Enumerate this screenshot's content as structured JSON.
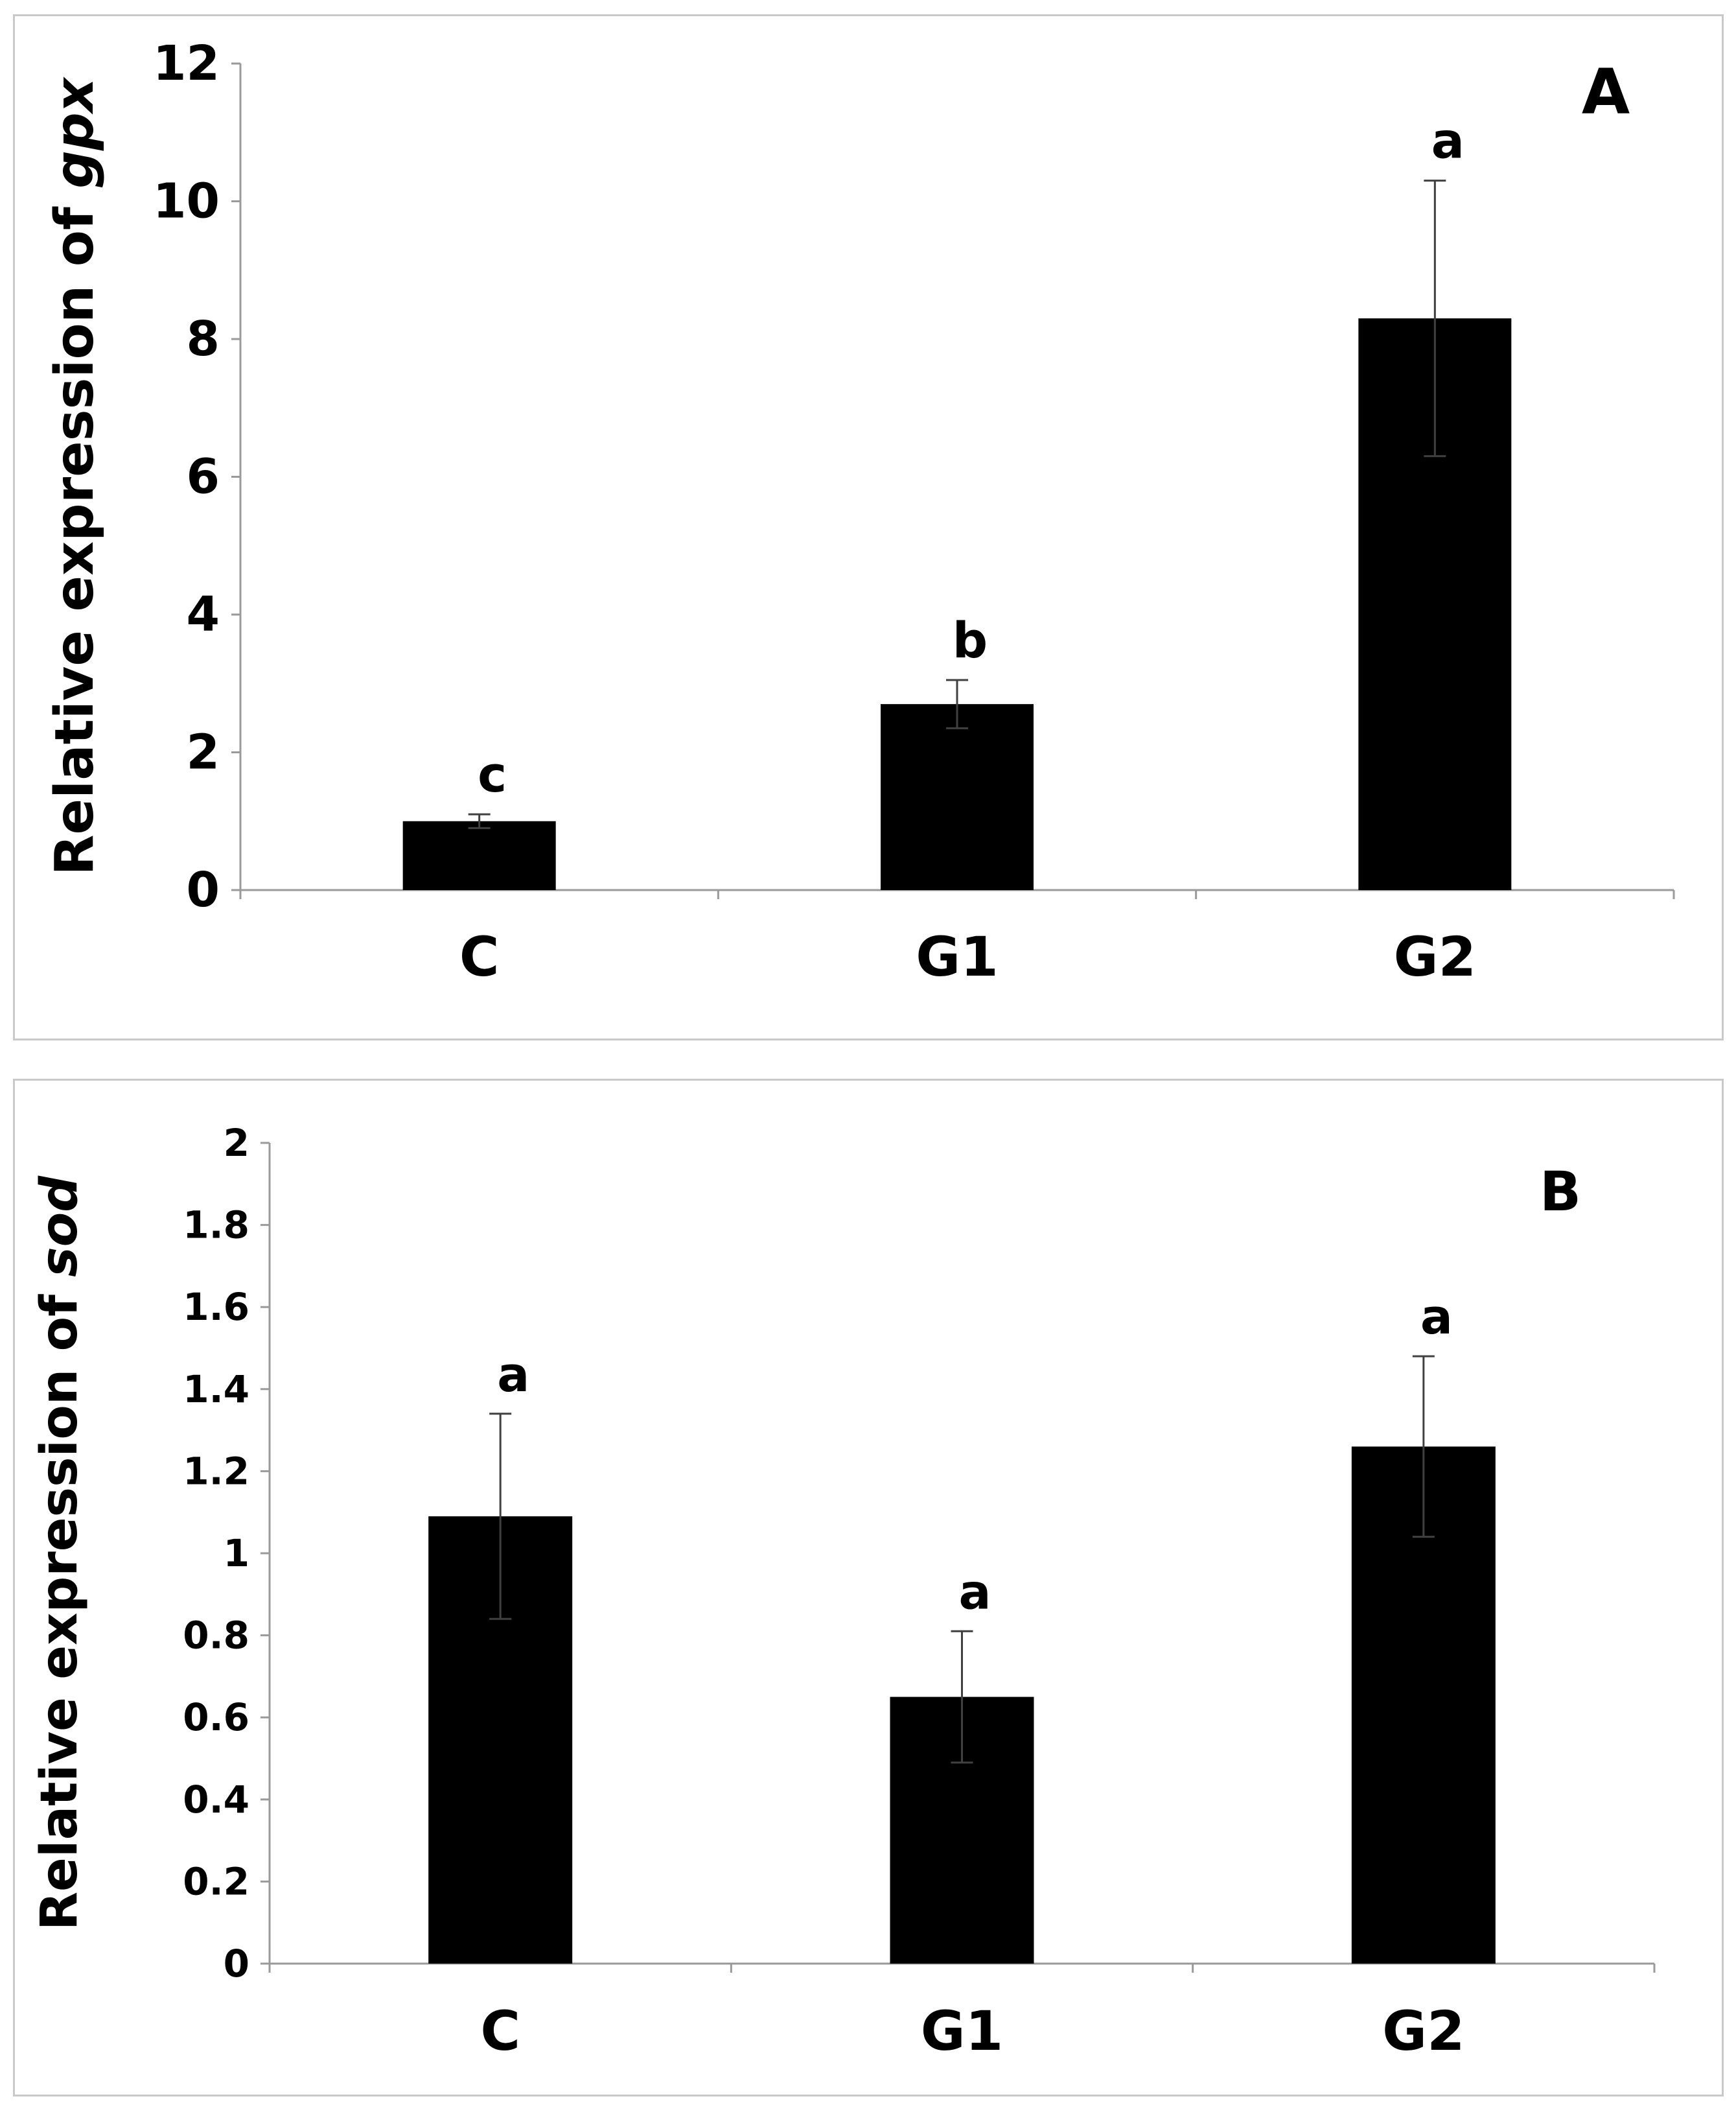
{
  "chart_data": [
    {
      "type": "bar",
      "panel_label": "A",
      "ylabel_prefix": "Relative expression of ",
      "ylabel_gene": "gpx",
      "categories": [
        "C",
        "G1",
        "G2"
      ],
      "values": [
        1.0,
        2.7,
        8.3
      ],
      "error": [
        0.1,
        0.35,
        2.0
      ],
      "letters": [
        "c",
        "b",
        "a"
      ],
      "ylim": [
        0,
        12
      ],
      "yticks": [
        0,
        2,
        4,
        6,
        8,
        10,
        12
      ],
      "ytick_labels": [
        "0",
        "2",
        "4",
        "6",
        "8",
        "10",
        "12"
      ],
      "grid": false,
      "bar_color": "#000000"
    },
    {
      "type": "bar",
      "panel_label": "B",
      "ylabel_prefix": "Relative expression of ",
      "ylabel_gene": "sod",
      "categories": [
        "C",
        "G1",
        "G2"
      ],
      "values": [
        1.09,
        0.65,
        1.26
      ],
      "error": [
        0.25,
        0.16,
        0.22
      ],
      "letters": [
        "a",
        "a",
        "a"
      ],
      "ylim": [
        0,
        2
      ],
      "yticks": [
        0,
        0.2,
        0.4,
        0.6,
        0.8,
        1.0,
        1.2,
        1.4,
        1.6,
        1.8,
        2.0
      ],
      "ytick_labels": [
        "0",
        "0.2",
        "0.4",
        "0.6",
        "0.8",
        "1",
        "1.2",
        "1.4",
        "1.6",
        "1.8",
        "2"
      ],
      "grid": false,
      "bar_color": "#000000"
    }
  ]
}
